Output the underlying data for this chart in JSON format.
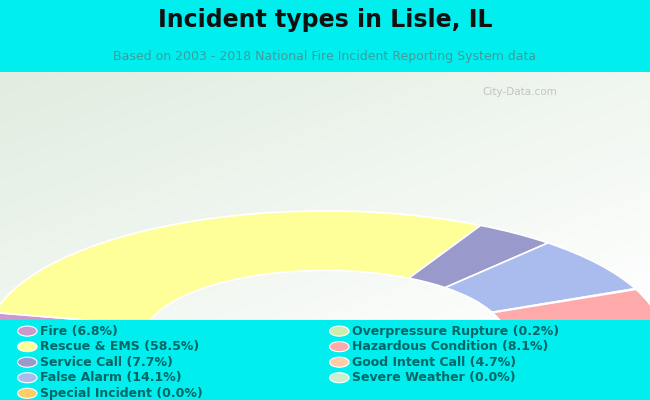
{
  "title": "Incident types in Lisle, IL",
  "subtitle": "Based on 2003 - 2018 National Fire Incident Reporting System data",
  "background_color": "#00EEEE",
  "chart_bg_color": "#e8efe8",
  "categories": [
    "Fire (6.8%)",
    "Rescue & EMS (58.5%)",
    "Service Call (7.7%)",
    "False Alarm (14.1%)",
    "Special Incident (0.0%)",
    "Overpressure Rupture (0.2%)",
    "Hazardous Condition (8.1%)",
    "Good Intent Call (4.7%)",
    "Severe Weather (0.0%)"
  ],
  "values": [
    6.8,
    58.5,
    7.7,
    14.1,
    0.0,
    0.2,
    8.1,
    4.7,
    0.0
  ],
  "colors": [
    "#cc99cc",
    "#ffff99",
    "#9999cc",
    "#aabbee",
    "#ffcc66",
    "#cceeaa",
    "#ffaaaa",
    "#ffccaa",
    "#cceecc"
  ],
  "title_fontsize": 17,
  "subtitle_fontsize": 9,
  "legend_fontsize": 9,
  "title_color": "#111111",
  "subtitle_color": "#449999",
  "legend_text_color": "#006666",
  "watermark": "City-Data.com"
}
